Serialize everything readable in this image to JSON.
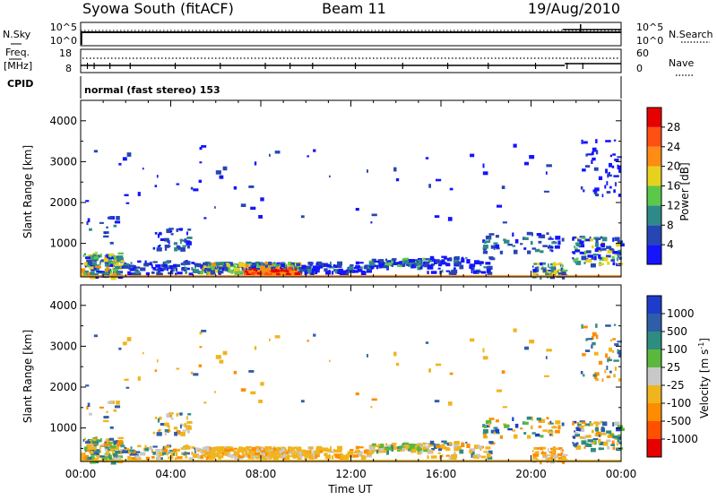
{
  "header": {
    "station": "Syowa South (fitACF)",
    "beam": "Beam 11",
    "date": "19/Aug/2010"
  },
  "status_panels": {
    "nsky_label": "N.Sky",
    "nsky_ticks": [
      "10^5",
      "10^0"
    ],
    "nsearch_label": "N.Search",
    "nsearch_ticks": [
      "10^5",
      "10^0"
    ],
    "freq_label": "Freq.",
    "freq_unit": "[MHz]",
    "freq_ticks": [
      "18",
      "8"
    ],
    "nave_label": "Nave",
    "nave_ticks": [
      "60",
      "0"
    ],
    "cpid_label": "CPID",
    "cpid_value": "normal (fast stereo) 153"
  },
  "chart_data": [
    {
      "type": "heatmap",
      "parameter": "power",
      "ylabel": "Slant Range [km]",
      "ylim": [
        180,
        4500
      ],
      "yticks": [
        "1000",
        "2000",
        "3000",
        "4000"
      ],
      "xlim_hours": [
        0,
        24
      ],
      "colorbar_label": "Power [dB]",
      "colorbar_ticks": [
        "4",
        "8",
        "12",
        "16",
        "20",
        "24",
        "28"
      ],
      "colors": [
        "#1414ff",
        "#2646b4",
        "#2e8a88",
        "#5cc84a",
        "#e6d21e",
        "#ff8c14",
        "#ff5014",
        "#e60000"
      ],
      "grid": false
    },
    {
      "type": "heatmap",
      "parameter": "velocity",
      "ylabel": "Slant Range [km]",
      "ylim": [
        180,
        4500
      ],
      "yticks": [
        "1000",
        "2000",
        "3000",
        "4000"
      ],
      "xlim_hours": [
        0,
        24
      ],
      "xticks": [
        "00:00",
        "04:00",
        "08:00",
        "12:00",
        "16:00",
        "20:00",
        "00:00"
      ],
      "xlabel": "Time UT",
      "colorbar_label": "Velocity [m s",
      "colorbar_label_sup": "-1",
      "colorbar_label_end": "]",
      "colorbar_ticks": [
        "1000",
        "500",
        "100",
        "25",
        "-25",
        "-100",
        "-500",
        "-1000"
      ],
      "colors": [
        "#1e3ccc",
        "#2e5ea8",
        "#2e8c80",
        "#5ab83c",
        "#c8c8c8",
        "#f0b41e",
        "#ff8c00",
        "#ff5000",
        "#e60000"
      ],
      "grid": false
    }
  ]
}
